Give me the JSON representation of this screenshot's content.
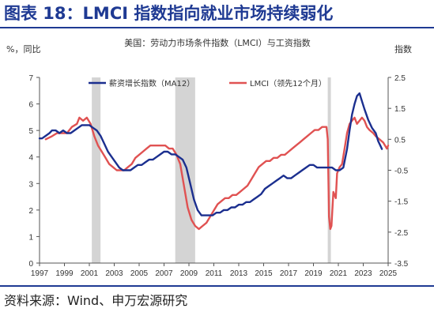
{
  "figure": {
    "title": "图表 18：LMCI 指数指向就业市场持续弱化",
    "source": "资料来源：Wind、申万宏源研究"
  },
  "chart_data": {
    "type": "line",
    "title": "美国：劳动力市场条件指数（LMCI）与工资指数",
    "left_axis_label": "%，同比",
    "right_axis_label": "指数",
    "x_ticks": [
      "1997",
      "1999",
      "2001",
      "2003",
      "2005",
      "2007",
      "2009",
      "2011",
      "2013",
      "2015",
      "2017",
      "2019",
      "2021",
      "2023",
      "2025"
    ],
    "left_ylim": [
      0,
      7
    ],
    "left_ticks": [
      "0",
      "1",
      "2",
      "3",
      "4",
      "5",
      "6",
      "7"
    ],
    "right_ylim": [
      -3.5,
      2.5
    ],
    "right_ticks": [
      "-3.5",
      "-2.5",
      "-1.5",
      "-0.5",
      "0.5",
      "1.5",
      "2.5"
    ],
    "legend_position": "top",
    "recessions": [
      [
        2001.2,
        2001.9
      ],
      [
        2007.9,
        2009.5
      ],
      [
        2020.15,
        2020.4
      ]
    ],
    "series": [
      {
        "name": "薪资增长指数（MA12）",
        "axis": "left",
        "color": "#1b2f8f",
        "points": [
          [
            1997.0,
            4.7
          ],
          [
            1997.2,
            4.7
          ],
          [
            1997.5,
            4.8
          ],
          [
            1997.8,
            4.9
          ],
          [
            1998.0,
            5.0
          ],
          [
            1998.3,
            5.0
          ],
          [
            1998.6,
            4.9
          ],
          [
            1998.9,
            5.0
          ],
          [
            1999.2,
            4.9
          ],
          [
            1999.5,
            4.9
          ],
          [
            1999.8,
            5.0
          ],
          [
            2000.1,
            5.1
          ],
          [
            2000.4,
            5.2
          ],
          [
            2000.7,
            5.2
          ],
          [
            2001.0,
            5.2
          ],
          [
            2001.3,
            5.1
          ],
          [
            2001.6,
            5.0
          ],
          [
            2001.9,
            4.8
          ],
          [
            2002.2,
            4.5
          ],
          [
            2002.5,
            4.2
          ],
          [
            2002.8,
            4.0
          ],
          [
            2003.1,
            3.8
          ],
          [
            2003.4,
            3.6
          ],
          [
            2003.7,
            3.5
          ],
          [
            2004.0,
            3.5
          ],
          [
            2004.3,
            3.5
          ],
          [
            2004.6,
            3.6
          ],
          [
            2004.9,
            3.7
          ],
          [
            2005.2,
            3.7
          ],
          [
            2005.5,
            3.8
          ],
          [
            2005.8,
            3.9
          ],
          [
            2006.1,
            3.9
          ],
          [
            2006.4,
            4.0
          ],
          [
            2006.7,
            4.1
          ],
          [
            2007.0,
            4.2
          ],
          [
            2007.3,
            4.2
          ],
          [
            2007.6,
            4.1
          ],
          [
            2007.9,
            4.1
          ],
          [
            2008.2,
            4.0
          ],
          [
            2008.5,
            3.9
          ],
          [
            2008.8,
            3.6
          ],
          [
            2009.1,
            3.0
          ],
          [
            2009.4,
            2.4
          ],
          [
            2009.7,
            2.0
          ],
          [
            2010.0,
            1.8
          ],
          [
            2010.3,
            1.8
          ],
          [
            2010.6,
            1.8
          ],
          [
            2010.9,
            1.8
          ],
          [
            2011.2,
            1.9
          ],
          [
            2011.5,
            1.9
          ],
          [
            2011.8,
            2.0
          ],
          [
            2012.1,
            2.0
          ],
          [
            2012.4,
            2.1
          ],
          [
            2012.7,
            2.1
          ],
          [
            2013.0,
            2.2
          ],
          [
            2013.3,
            2.2
          ],
          [
            2013.6,
            2.3
          ],
          [
            2013.9,
            2.3
          ],
          [
            2014.2,
            2.4
          ],
          [
            2014.5,
            2.5
          ],
          [
            2014.8,
            2.6
          ],
          [
            2015.1,
            2.8
          ],
          [
            2015.4,
            2.9
          ],
          [
            2015.7,
            3.0
          ],
          [
            2016.0,
            3.1
          ],
          [
            2016.3,
            3.2
          ],
          [
            2016.6,
            3.3
          ],
          [
            2016.9,
            3.2
          ],
          [
            2017.2,
            3.2
          ],
          [
            2017.5,
            3.3
          ],
          [
            2017.8,
            3.4
          ],
          [
            2018.1,
            3.5
          ],
          [
            2018.4,
            3.6
          ],
          [
            2018.7,
            3.7
          ],
          [
            2019.0,
            3.7
          ],
          [
            2019.3,
            3.6
          ],
          [
            2019.6,
            3.6
          ],
          [
            2019.9,
            3.6
          ],
          [
            2020.2,
            3.6
          ],
          [
            2020.5,
            3.6
          ],
          [
            2020.8,
            3.5
          ],
          [
            2021.1,
            3.5
          ],
          [
            2021.4,
            3.6
          ],
          [
            2021.7,
            4.3
          ],
          [
            2021.9,
            5.0
          ],
          [
            2022.1,
            5.6
          ],
          [
            2022.3,
            6.0
          ],
          [
            2022.5,
            6.3
          ],
          [
            2022.7,
            6.4
          ],
          [
            2022.9,
            6.1
          ],
          [
            2023.1,
            5.8
          ],
          [
            2023.4,
            5.4
          ],
          [
            2023.7,
            5.1
          ],
          [
            2024.0,
            4.9
          ],
          [
            2024.2,
            4.6
          ],
          [
            2024.4,
            4.4
          ],
          [
            2024.5,
            4.3
          ]
        ]
      },
      {
        "name": "LMCI（领先12个月）",
        "axis": "right",
        "color": "#e05252",
        "points": [
          [
            1997.5,
            0.5
          ],
          [
            1998.0,
            0.6
          ],
          [
            1998.4,
            0.7
          ],
          [
            1998.8,
            0.7
          ],
          [
            1999.2,
            0.7
          ],
          [
            1999.6,
            0.9
          ],
          [
            2000.0,
            1.0
          ],
          [
            2000.2,
            1.2
          ],
          [
            2000.5,
            1.1
          ],
          [
            2000.8,
            1.2
          ],
          [
            2001.1,
            1.0
          ],
          [
            2001.4,
            0.6
          ],
          [
            2001.7,
            0.3
          ],
          [
            2002.0,
            0.1
          ],
          [
            2002.3,
            -0.1
          ],
          [
            2002.6,
            -0.3
          ],
          [
            2002.9,
            -0.4
          ],
          [
            2003.2,
            -0.5
          ],
          [
            2003.5,
            -0.5
          ],
          [
            2003.8,
            -0.5
          ],
          [
            2004.1,
            -0.4
          ],
          [
            2004.4,
            -0.3
          ],
          [
            2004.7,
            -0.1
          ],
          [
            2005.0,
            0.0
          ],
          [
            2005.3,
            0.1
          ],
          [
            2005.6,
            0.2
          ],
          [
            2005.9,
            0.3
          ],
          [
            2006.2,
            0.3
          ],
          [
            2006.5,
            0.3
          ],
          [
            2006.8,
            0.3
          ],
          [
            2007.1,
            0.3
          ],
          [
            2007.4,
            0.2
          ],
          [
            2007.7,
            0.2
          ],
          [
            2008.0,
            0.0
          ],
          [
            2008.3,
            -0.3
          ],
          [
            2008.6,
            -1.0
          ],
          [
            2008.9,
            -1.7
          ],
          [
            2009.2,
            -2.1
          ],
          [
            2009.5,
            -2.3
          ],
          [
            2009.8,
            -2.4
          ],
          [
            2010.1,
            -2.3
          ],
          [
            2010.4,
            -2.2
          ],
          [
            2010.7,
            -2.0
          ],
          [
            2011.0,
            -1.8
          ],
          [
            2011.3,
            -1.6
          ],
          [
            2011.6,
            -1.5
          ],
          [
            2011.9,
            -1.4
          ],
          [
            2012.2,
            -1.4
          ],
          [
            2012.5,
            -1.3
          ],
          [
            2012.8,
            -1.3
          ],
          [
            2013.1,
            -1.2
          ],
          [
            2013.4,
            -1.1
          ],
          [
            2013.7,
            -1.0
          ],
          [
            2014.0,
            -0.8
          ],
          [
            2014.3,
            -0.6
          ],
          [
            2014.6,
            -0.4
          ],
          [
            2014.9,
            -0.3
          ],
          [
            2015.2,
            -0.2
          ],
          [
            2015.5,
            -0.2
          ],
          [
            2015.8,
            -0.1
          ],
          [
            2016.1,
            -0.1
          ],
          [
            2016.4,
            0.0
          ],
          [
            2016.7,
            0.0
          ],
          [
            2017.0,
            0.1
          ],
          [
            2017.3,
            0.2
          ],
          [
            2017.6,
            0.3
          ],
          [
            2017.9,
            0.4
          ],
          [
            2018.2,
            0.5
          ],
          [
            2018.5,
            0.6
          ],
          [
            2018.8,
            0.7
          ],
          [
            2019.1,
            0.8
          ],
          [
            2019.4,
            0.8
          ],
          [
            2019.7,
            0.9
          ],
          [
            2019.9,
            0.9
          ],
          [
            2020.05,
            0.9
          ],
          [
            2020.15,
            0.5
          ],
          [
            2020.25,
            -2.0
          ],
          [
            2020.35,
            -2.4
          ],
          [
            2020.45,
            -2.3
          ],
          [
            2020.6,
            -1.2
          ],
          [
            2020.8,
            -1.4
          ],
          [
            2020.9,
            -0.6
          ],
          [
            2021.1,
            -0.4
          ],
          [
            2021.3,
            -0.3
          ],
          [
            2021.5,
            0.2
          ],
          [
            2021.7,
            0.7
          ],
          [
            2021.9,
            1.0
          ],
          [
            2022.1,
            1.1
          ],
          [
            2022.3,
            1.2
          ],
          [
            2022.5,
            1.0
          ],
          [
            2022.7,
            1.1
          ],
          [
            2022.9,
            1.2
          ],
          [
            2023.1,
            1.1
          ],
          [
            2023.3,
            0.9
          ],
          [
            2023.5,
            0.8
          ],
          [
            2023.8,
            0.7
          ],
          [
            2024.0,
            0.6
          ],
          [
            2024.3,
            0.5
          ],
          [
            2024.6,
            0.4
          ],
          [
            2024.9,
            0.2
          ],
          [
            2025.0,
            0.3
          ]
        ]
      }
    ]
  }
}
